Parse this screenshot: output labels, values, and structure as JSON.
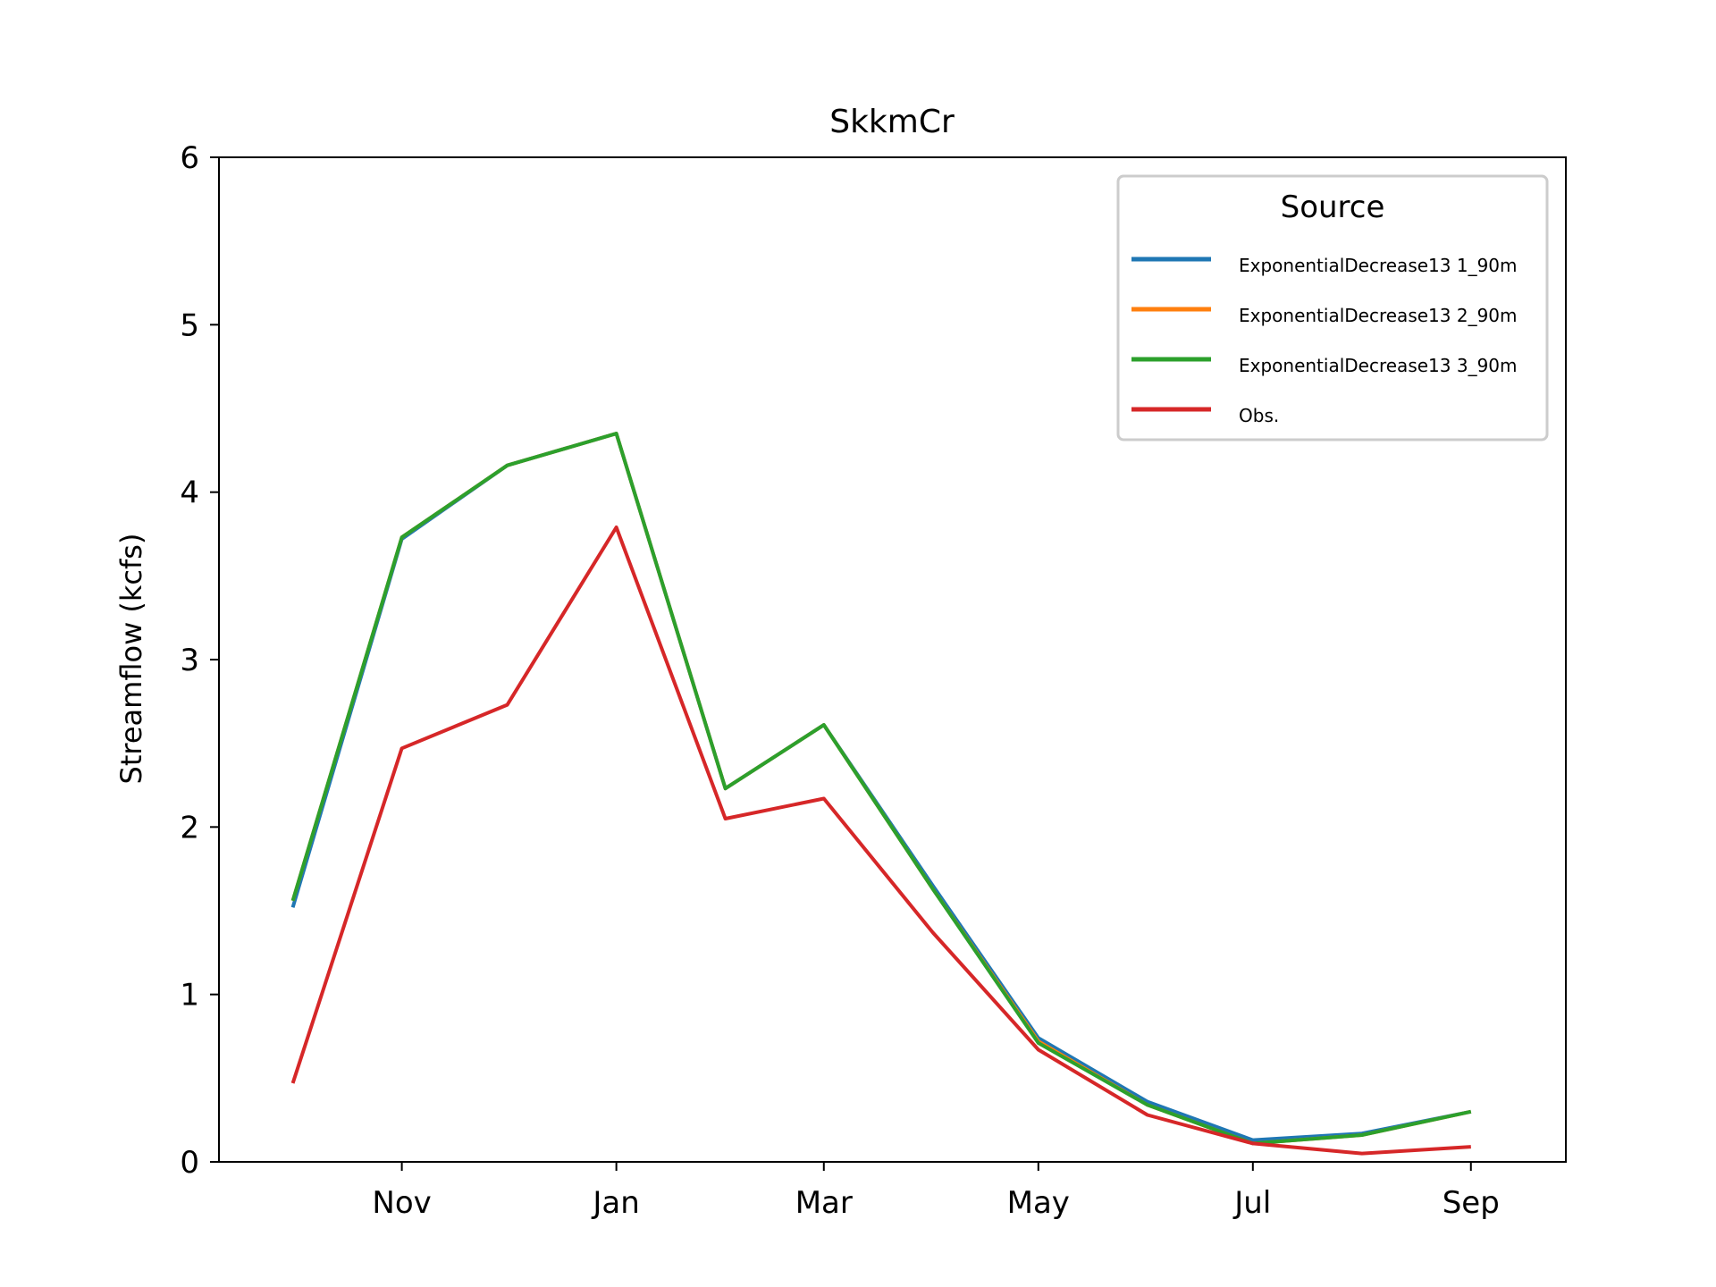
{
  "chart_data": {
    "type": "line",
    "title": "SkkmCr",
    "xlabel": "",
    "ylabel": "Streamflow (kcfs)",
    "x": [
      "2016-10-01",
      "2016-11-01",
      "2016-12-01",
      "2017-01-01",
      "2017-02-01",
      "2017-03-01",
      "2017-04-01",
      "2017-05-01",
      "2017-06-01",
      "2017-07-01",
      "2017-08-01",
      "2017-09-01"
    ],
    "xlim": [
      "2016-09-10",
      "2017-09-28"
    ],
    "xticks": [
      {
        "date": "2016-11-01",
        "label": "Nov"
      },
      {
        "date": "2017-01-01",
        "label": "Jan"
      },
      {
        "date": "2017-03-01",
        "label": "Mar"
      },
      {
        "date": "2017-05-01",
        "label": "May"
      },
      {
        "date": "2017-07-01",
        "label": "Jul"
      },
      {
        "date": "2017-09-01",
        "label": "Sep"
      }
    ],
    "ylim": [
      0,
      6
    ],
    "yticks": [
      0,
      1,
      2,
      3,
      4,
      5,
      6
    ],
    "grid": false,
    "legend": {
      "title": "Source",
      "position": "top-right"
    },
    "series": [
      {
        "name": "ExponentialDecrease13 1_90m",
        "color": "#1f77b4",
        "values": [
          1.52,
          3.72,
          4.16,
          4.35,
          2.23,
          2.61,
          1.65,
          0.74,
          0.36,
          0.13,
          0.17,
          0.3
        ]
      },
      {
        "name": "ExponentialDecrease13 2_90m",
        "color": "#ff7f0e",
        "values": [
          1.56,
          3.73,
          4.16,
          4.35,
          2.23,
          2.61,
          1.63,
          0.72,
          0.34,
          0.11,
          0.16,
          0.3
        ]
      },
      {
        "name": "ExponentialDecrease13 3_90m",
        "color": "#2ca02c",
        "values": [
          1.56,
          3.73,
          4.16,
          4.35,
          2.23,
          2.61,
          1.63,
          0.71,
          0.34,
          0.11,
          0.16,
          0.3
        ]
      },
      {
        "name": "Obs.",
        "color": "#d62728",
        "values": [
          0.47,
          2.47,
          2.73,
          3.79,
          2.05,
          2.17,
          1.37,
          0.67,
          0.28,
          0.11,
          0.05,
          0.09
        ]
      }
    ]
  }
}
